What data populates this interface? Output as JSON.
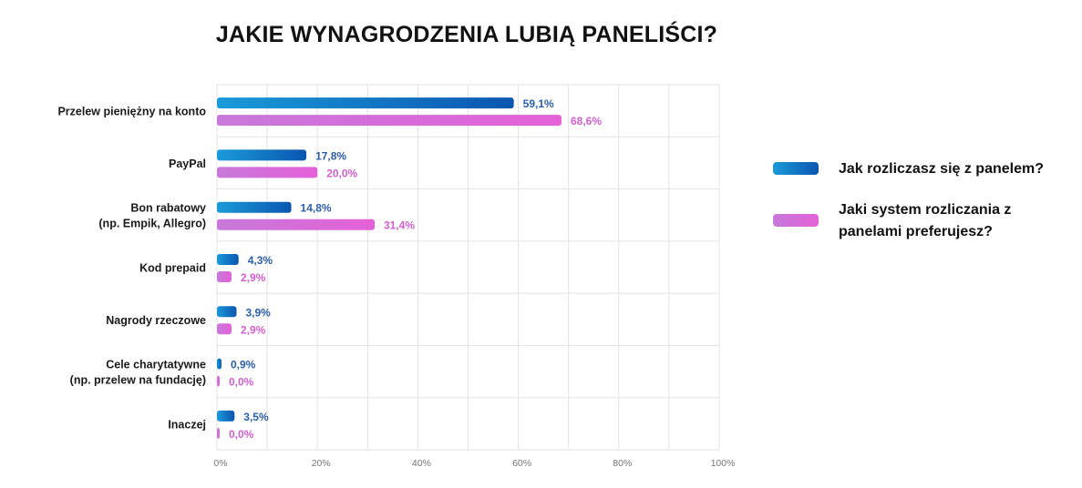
{
  "title": "JAKIE WYNAGRODZENIA LUBIĄ PANELIŚCI?",
  "chart_data": {
    "type": "bar",
    "orientation": "horizontal",
    "title": "JAKIE WYNAGRODZENIA LUBIĄ PANELIŚCI?",
    "categories": [
      [
        "Przelew pieniężny na konto"
      ],
      [
        "PayPal"
      ],
      [
        "Bon rabatowy",
        "(np. Empik, Allegro)"
      ],
      [
        "Kod prepaid"
      ],
      [
        "Nagrody rzeczowe"
      ],
      [
        "Cele charytatywne",
        "(np. przelew na fundację)"
      ],
      [
        "Inaczej"
      ]
    ],
    "series": [
      {
        "name": "Jak rozliczasz się z panelem?",
        "color_start": "#1a9ad9",
        "color_end": "#0b56b0",
        "label_color": "#2b5fad",
        "values": [
          59.1,
          17.8,
          14.8,
          4.3,
          3.9,
          0.9,
          3.5
        ],
        "labels": [
          "59,1%",
          "17,8%",
          "14,8%",
          "4,3%",
          "3,9%",
          "0,9%",
          "3,5%"
        ]
      },
      {
        "name": "Jaki system rozliczania z panelami preferujesz?",
        "color_start": "#c779d9",
        "color_end": "#e461d8",
        "label_color": "#d65fd1",
        "values": [
          68.6,
          20.0,
          31.4,
          2.9,
          2.9,
          0.0,
          0.0
        ],
        "labels": [
          "68,6%",
          "20,0%",
          "31,4%",
          "2,9%",
          "2,9%",
          "0,0%",
          "0,0%"
        ]
      }
    ],
    "xlim": [
      0,
      100
    ],
    "xticks": [
      0,
      20,
      40,
      60,
      80,
      100
    ],
    "xtick_labels": [
      "0%",
      "20%",
      "40%",
      "60%",
      "80%",
      "100%"
    ],
    "grid": true,
    "legend": "right"
  },
  "legend": {
    "items": [
      {
        "lines": [
          "Jak rozliczasz się z panelem?"
        ]
      },
      {
        "lines": [
          "Jaki system rozliczania z",
          "panelami preferujesz?"
        ]
      }
    ]
  }
}
